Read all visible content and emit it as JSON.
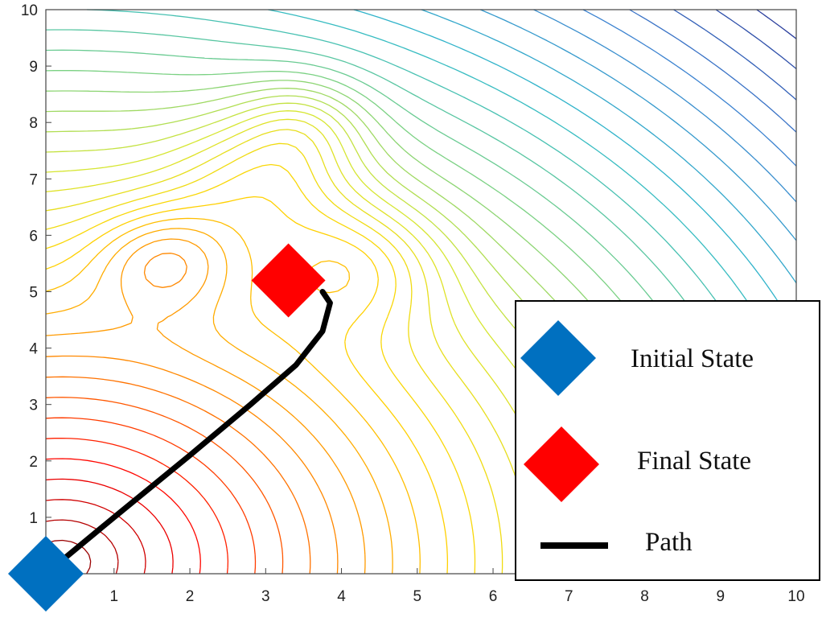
{
  "chart_data": {
    "type": "contour",
    "title": "",
    "xlabel": "",
    "ylabel": "",
    "xlim": [
      0.1,
      10
    ],
    "ylim": [
      0,
      10
    ],
    "x_ticks": [
      1,
      2,
      3,
      4,
      5,
      6,
      7,
      8,
      9,
      10
    ],
    "y_ticks": [
      1,
      2,
      3,
      4,
      5,
      6,
      7,
      8,
      9,
      10
    ],
    "grid": false,
    "legend_placement": "bottom-right",
    "legend": [
      {
        "label": "Initial State",
        "marker": "diamond",
        "color": "#0070C0"
      },
      {
        "label": "Final State",
        "marker": "diamond",
        "color": "#FF0000"
      },
      {
        "label": "Path",
        "marker": "line",
        "color": "#000000"
      }
    ],
    "markers": {
      "initial_state": {
        "x": 0.1,
        "y": 0.0
      },
      "final_state": {
        "x": 3.3,
        "y": 5.2
      }
    },
    "path": [
      {
        "x": 0.1,
        "y": 0.0
      },
      {
        "x": 1.0,
        "y": 1.0
      },
      {
        "x": 2.0,
        "y": 2.1
      },
      {
        "x": 2.8,
        "y": 3.0
      },
      {
        "x": 3.4,
        "y": 3.7
      },
      {
        "x": 3.75,
        "y": 4.3
      },
      {
        "x": 3.85,
        "y": 4.8
      },
      {
        "x": 3.75,
        "y": 5.0
      }
    ],
    "contour_sources": [
      {
        "x": 1.7,
        "y": 5.6,
        "kind": "maximum"
      },
      {
        "x": 3.0,
        "y": 7.0,
        "kind": "maximum"
      },
      {
        "x": 4.0,
        "y": 5.5,
        "kind": "maximum"
      }
    ],
    "colormap": [
      "#7f0000",
      "#ff0000",
      "#ff7f00",
      "#ffd400",
      "#d6e632",
      "#7fd27f",
      "#2fb9c9",
      "#3c7fd0",
      "#262e8f"
    ]
  }
}
